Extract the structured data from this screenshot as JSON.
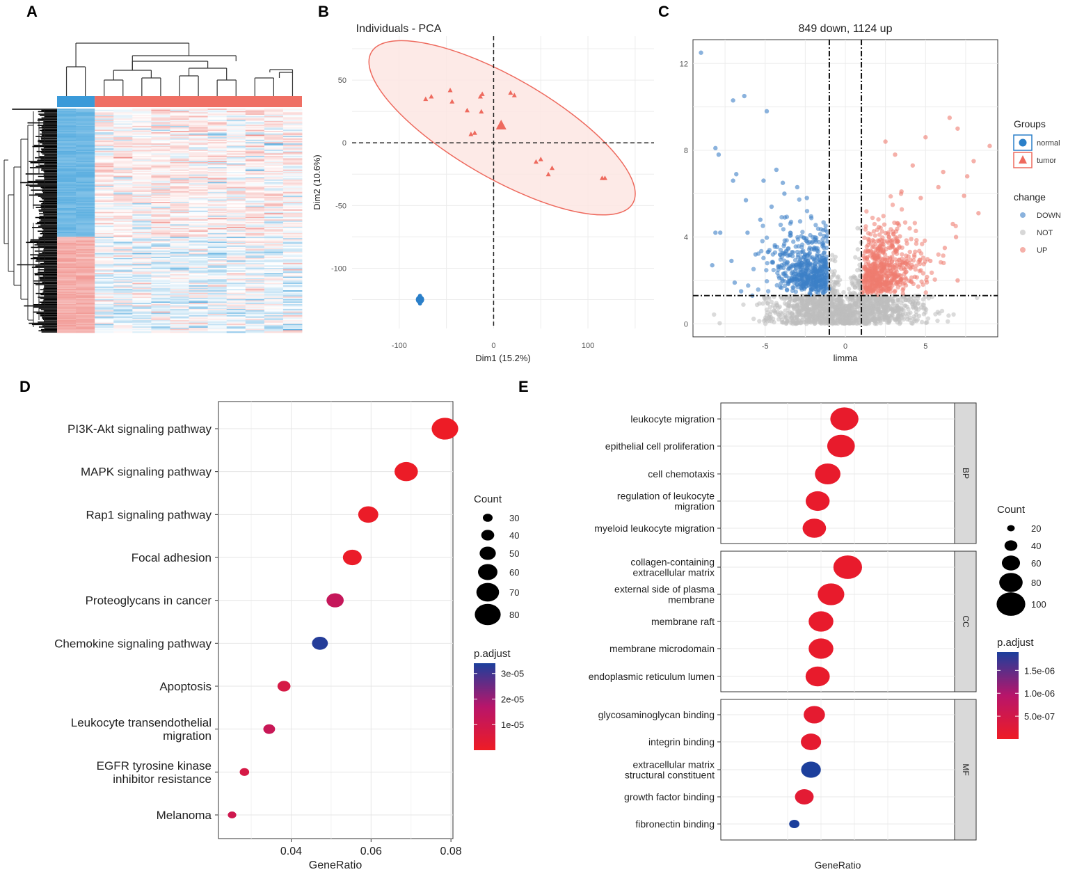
{
  "panels": {
    "A": "A",
    "B": "B",
    "C": "C",
    "D": "D",
    "E": "E"
  },
  "colors": {
    "normal": "#2a7fc9",
    "tumor": "#ee6a5e",
    "down": "#3c7fc7",
    "up": "#ef7b6f",
    "not": "#bdbdbd",
    "pmin": "#ee1c25",
    "pmid": "#b8156a",
    "pmax": "#1c3f9c"
  },
  "heatmap": {
    "n_normal": 2,
    "n_tumor": 11,
    "group_colors": {
      "normal": "#3a9ad9",
      "tumor": "#ef6f64"
    },
    "note": "clustered expression heatmap of DEGs; 2 normal vs 11 tumor samples"
  },
  "chart_data": [
    {
      "panel": "B",
      "type": "scatter",
      "title": "Individuals - PCA",
      "xlabel": "Dim1 (15.2%)",
      "ylabel": "Dim2 (10.6%)",
      "xlim": [
        -150,
        170
      ],
      "ylim": [
        -148,
        85
      ],
      "xticks": [
        -100,
        0,
        100
      ],
      "xtick_labels": [
        "-100",
        "0",
        "100"
      ],
      "yticks": [
        50,
        0,
        -50,
        -100
      ],
      "ytick_labels": [
        "50",
        "0",
        "-50",
        "-100"
      ],
      "groups": [
        {
          "name": "normal",
          "shape": "circle",
          "points": [
            [
              -78,
              -122
            ],
            [
              -78,
              -128
            ]
          ],
          "centroid": [
            -78,
            -125
          ]
        },
        {
          "name": "tumor",
          "shape": "triangle",
          "points": [
            [
              -72,
              35
            ],
            [
              -66,
              37
            ],
            [
              -46,
              42
            ],
            [
              -44,
              33
            ],
            [
              -28,
              26
            ],
            [
              -14,
              37
            ],
            [
              -12,
              39
            ],
            [
              -24,
              7
            ],
            [
              -20,
              8
            ],
            [
              -13,
              25
            ],
            [
              18,
              40
            ],
            [
              22,
              38
            ],
            [
              45,
              -15
            ],
            [
              50,
              -13
            ],
            [
              58,
              -25
            ],
            [
              62,
              -20
            ],
            [
              115,
              -28
            ],
            [
              118,
              -28
            ]
          ],
          "centroid": [
            8,
            14
          ]
        }
      ],
      "ellipse": {
        "group": "tumor",
        "center": [
          9,
          12
        ],
        "semi_axes": [
          160,
          40
        ],
        "angle_deg": -30
      }
    },
    {
      "panel": "C",
      "type": "scatter",
      "title": "849 down, 1124 up",
      "xlabel": "limma",
      "ylabel": "",
      "xlim": [
        -9.5,
        9.5
      ],
      "ylim": [
        -0.6,
        13.1
      ],
      "xticks": [
        -5,
        0,
        5
      ],
      "xtick_labels": [
        "-5",
        "0",
        "5"
      ],
      "yticks": [
        0,
        4,
        8,
        12
      ],
      "ytick_labels": [
        "0",
        "4",
        "8",
        "12"
      ],
      "thresholds": {
        "logfc": [
          -1,
          1
        ],
        "neglog10p": 1.3
      },
      "counts": {
        "down": 849,
        "up": 1124
      },
      "down_points": [
        [
          -9.0,
          12.5
        ],
        [
          -6.3,
          10.5
        ],
        [
          -7.0,
          10.3
        ],
        [
          -4.9,
          9.8
        ],
        [
          -8.1,
          8.1
        ],
        [
          -7.9,
          7.8
        ],
        [
          -6.8,
          6.9
        ],
        [
          -7.0,
          6.6
        ],
        [
          -4.3,
          7.1
        ],
        [
          -5.1,
          6.6
        ],
        [
          -3.9,
          6.5
        ],
        [
          -6.2,
          5.7
        ],
        [
          -8.1,
          4.2
        ],
        [
          -7.8,
          4.2
        ],
        [
          -6.1,
          4.2
        ],
        [
          -5.3,
          4.8
        ],
        [
          -4.6,
          5.4
        ],
        [
          -3.8,
          6.0
        ],
        [
          -3.0,
          6.3
        ],
        [
          -2.4,
          5.8
        ],
        [
          -8.3,
          2.7
        ],
        [
          -7.1,
          2.9
        ],
        [
          -5.6,
          3.2
        ],
        [
          -6.9,
          1.9
        ],
        [
          -6.5,
          1.5
        ],
        [
          -5.8,
          1.3
        ]
      ],
      "up_points": [
        [
          9.0,
          8.2
        ],
        [
          8.0,
          7.5
        ],
        [
          7.0,
          9.0
        ],
        [
          6.5,
          9.5
        ],
        [
          5.0,
          8.6
        ],
        [
          6.1,
          7.0
        ],
        [
          7.6,
          6.8
        ],
        [
          3.1,
          7.8
        ],
        [
          4.2,
          7.3
        ],
        [
          2.5,
          8.4
        ],
        [
          5.8,
          6.3
        ],
        [
          7.4,
          5.9
        ],
        [
          4.7,
          5.8
        ],
        [
          3.5,
          6.1
        ],
        [
          6.9,
          4.0
        ],
        [
          8.3,
          5.1
        ],
        [
          6.2,
          3.5
        ],
        [
          5.3,
          2.9
        ],
        [
          7.0,
          2.0
        ],
        [
          6.7,
          4.6
        ]
      ],
      "legend": {
        "groups_title": "Groups",
        "groups": [
          "normal",
          "tumor"
        ],
        "change_title": "change",
        "change": [
          "DOWN",
          "NOT",
          "UP"
        ]
      }
    },
    {
      "panel": "D",
      "type": "scatter",
      "subtype": "dotplot",
      "xlabel": "GeneRatio",
      "xlim": [
        0.0218,
        0.0805
      ],
      "xticks": [
        0.04,
        0.06,
        0.08
      ],
      "xtick_labels": [
        "0.04",
        "0.06",
        "0.08"
      ],
      "categories": [
        "PI3K-Akt signaling pathway",
        "MAPK signaling pathway",
        "Rap1 signaling pathway",
        "Focal adhesion",
        "Proteoglycans in cancer",
        "Chemokine signaling pathway",
        "Apoptosis",
        "Leukocyte transendothelial migration",
        "EGFR tyrosine kinase inhibitor resistance",
        "Melanoma"
      ],
      "category_lines": [
        [
          "PI3K-Akt signaling pathway"
        ],
        [
          "MAPK signaling pathway"
        ],
        [
          "Rap1 signaling pathway"
        ],
        [
          "Focal adhesion"
        ],
        [
          "Proteoglycans in cancer"
        ],
        [
          "Chemokine signaling pathway"
        ],
        [
          "Apoptosis"
        ],
        [
          "Leukocyte transendothelial",
          "migration"
        ],
        [
          "EGFR tyrosine kinase",
          "inhibitor resistance"
        ],
        [
          "Melanoma"
        ]
      ],
      "gene_ratio": [
        0.0785,
        0.0688,
        0.0593,
        0.0553,
        0.051,
        0.0472,
        0.0382,
        0.0345,
        0.0283,
        0.0252
      ],
      "count": [
        82,
        72,
        62,
        58,
        53,
        49,
        40,
        36,
        29,
        26
      ],
      "p_adjust": [
        2e-07,
        5e-07,
        8e-07,
        1e-06,
        1.3e-05,
        3.3e-05,
        8e-06,
        1.2e-05,
        8e-06,
        1e-05
      ],
      "size_legend": {
        "title": "Count",
        "values": [
          30,
          40,
          50,
          60,
          70,
          80
        ],
        "labels": [
          "30",
          "40",
          "50",
          "60",
          "70",
          "80"
        ]
      },
      "color_legend": {
        "title": "p.adjust",
        "range": [
          0,
          3.4e-05
        ],
        "ticks": [
          3e-05,
          2e-05,
          1e-05
        ],
        "labels": [
          "3e-05",
          "2e-05",
          "1e-05"
        ]
      }
    },
    {
      "panel": "E",
      "type": "scatter",
      "subtype": "dotplot-faceted",
      "xlabel": "GeneRatio",
      "facets": [
        {
          "name": "BP",
          "categories": [
            [
              "leukocyte migration"
            ],
            [
              "epithelial cell proliferation"
            ],
            [
              "cell chemotaxis"
            ],
            [
              "regulation of leukocyte",
              "migration"
            ],
            [
              "myeloid leukocyte migration"
            ]
          ],
          "gene_ratio": [
            0.0612,
            0.0611,
            0.0607,
            0.0604,
            0.0603
          ],
          "count": [
            98,
            96,
            88,
            82,
            80
          ],
          "p_adjust": [
            1e-07,
            1e-07,
            1e-07,
            1e-07,
            1e-07
          ]
        },
        {
          "name": "CC",
          "categories": [
            [
              "collagen-containing",
              "extracellular matrix"
            ],
            [
              "external side of plasma",
              "membrane"
            ],
            [
              "membrane raft"
            ],
            [
              "membrane microdomain"
            ],
            [
              "endoplasmic reticulum lumen"
            ]
          ],
          "gene_ratio": [
            0.0613,
            0.0608,
            0.0605,
            0.0605,
            0.0604
          ],
          "count": [
            100,
            92,
            85,
            85,
            83
          ],
          "p_adjust": [
            1e-07,
            1e-07,
            1e-07,
            1e-07,
            1e-07
          ]
        },
        {
          "name": "MF",
          "categories": [
            [
              "glycosaminoglycan binding"
            ],
            [
              "integrin binding"
            ],
            [
              "extracellular matrix",
              "structural constituent"
            ],
            [
              "growth factor binding"
            ],
            [
              "fibronectin binding"
            ]
          ],
          "gene_ratio": [
            0.0603,
            0.0602,
            0.0602,
            0.06,
            0.0597
          ],
          "count": [
            72,
            68,
            66,
            62,
            30
          ],
          "p_adjust": [
            1.5e-07,
            1.5e-07,
            1.9e-06,
            2e-07,
            1.9e-06
          ]
        }
      ],
      "size_legend": {
        "title": "Count",
        "values": [
          20,
          40,
          60,
          80,
          100
        ],
        "labels": [
          "20",
          "40",
          "60",
          "80",
          "100"
        ]
      },
      "color_legend": {
        "title": "p.adjust",
        "range": [
          0,
          1.9e-06
        ],
        "ticks": [
          1.5e-06,
          1e-06,
          5e-07
        ],
        "labels": [
          "1.5e-06",
          "1.0e-06",
          "5.0e-07"
        ]
      }
    }
  ]
}
